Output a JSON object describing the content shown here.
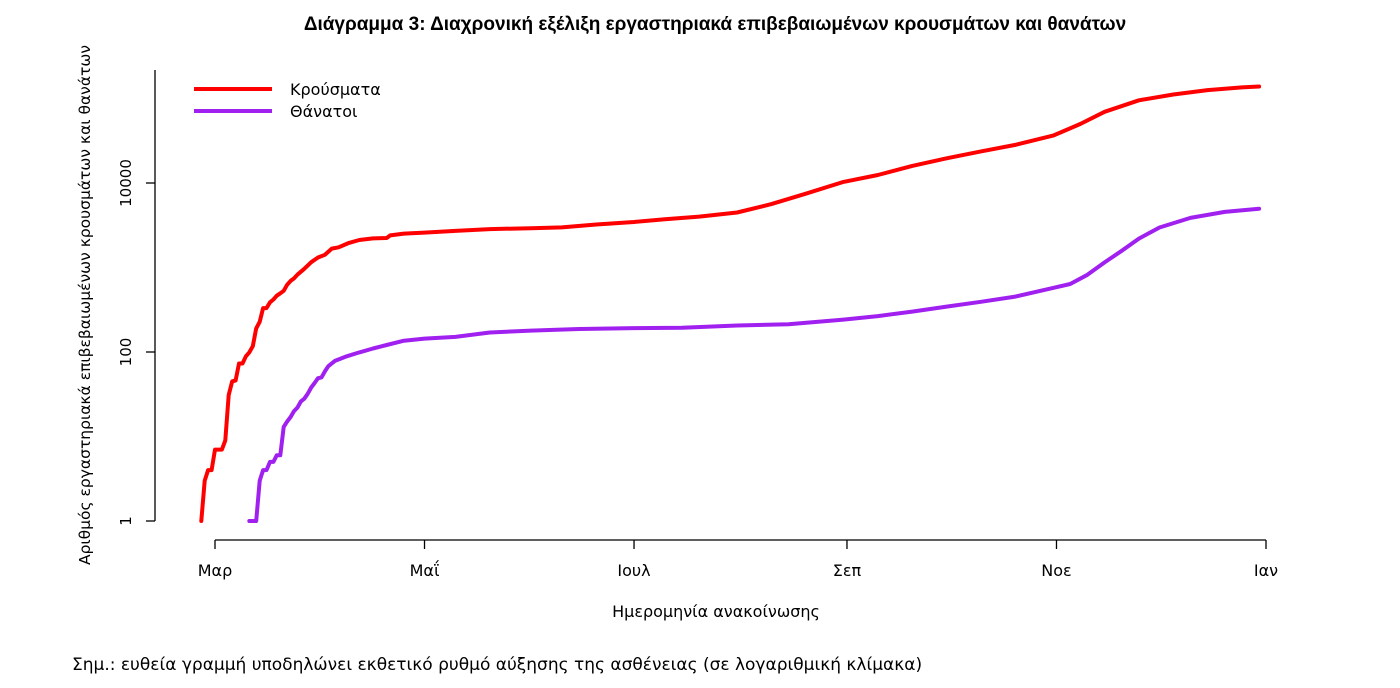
{
  "chart_data": {
    "type": "line",
    "title": "Διάγραμμα 3: Διαχρονική εξέλιξη εργαστηριακά επιβεβαιωμένων κρουσμάτων και θανάτων",
    "xlabel": "Ημερομηνία ανακοίνωσης",
    "ylabel": "Αριθμός εργαστηριακά επιβεβαιωμένων κρουσμάτων και θανάτων",
    "note": "Σημ.: ευθεία γραμμή υποδηλώνει εκθετικό ρυθμό αύξησης της ασθένειας (σε λογαριθμική κλίμακα)",
    "y_scale": "log",
    "ylim": [
      1,
      200000
    ],
    "y_ticks": [
      {
        "value": 1,
        "label": "1"
      },
      {
        "value": 100,
        "label": "100"
      },
      {
        "value": 10000,
        "label": "10000"
      }
    ],
    "xlim": [
      "2020-02-22",
      "2021-01-01"
    ],
    "x_ticks": [
      {
        "value": "2020-03-01",
        "label": "Μαρ"
      },
      {
        "value": "2020-05-01",
        "label": "Μαΐ"
      },
      {
        "value": "2020-07-01",
        "label": "Ιουλ"
      },
      {
        "value": "2020-09-01",
        "label": "Σεπ"
      },
      {
        "value": "2020-11-01",
        "label": "Νοε"
      },
      {
        "value": "2021-01-01",
        "label": "Ιαν"
      }
    ],
    "grid": false,
    "legend_position": "top-left",
    "series": [
      {
        "name": "Κρούσματα",
        "color": "#ff0000",
        "points": [
          [
            "2020-02-26",
            1
          ],
          [
            "2020-02-27",
            3
          ],
          [
            "2020-02-28",
            4
          ],
          [
            "2020-02-29",
            4
          ],
          [
            "2020-03-01",
            7
          ],
          [
            "2020-03-03",
            7
          ],
          [
            "2020-03-04",
            9
          ],
          [
            "2020-03-05",
            31
          ],
          [
            "2020-03-06",
            45
          ],
          [
            "2020-03-07",
            46
          ],
          [
            "2020-03-08",
            73
          ],
          [
            "2020-03-09",
            73
          ],
          [
            "2020-03-10",
            89
          ],
          [
            "2020-03-11",
            99
          ],
          [
            "2020-03-12",
            117
          ],
          [
            "2020-03-13",
            190
          ],
          [
            "2020-03-14",
            228
          ],
          [
            "2020-03-15",
            331
          ],
          [
            "2020-03-16",
            331
          ],
          [
            "2020-03-17",
            387
          ],
          [
            "2020-03-18",
            418
          ],
          [
            "2020-03-19",
            464
          ],
          [
            "2020-03-20",
            495
          ],
          [
            "2020-03-21",
            530
          ],
          [
            "2020-03-22",
            624
          ],
          [
            "2020-03-23",
            695
          ],
          [
            "2020-03-24",
            743
          ],
          [
            "2020-03-25",
            821
          ],
          [
            "2020-03-27",
            966
          ],
          [
            "2020-03-29",
            1156
          ],
          [
            "2020-03-31",
            1314
          ],
          [
            "2020-04-02",
            1415
          ],
          [
            "2020-04-04",
            1673
          ],
          [
            "2020-04-06",
            1735
          ],
          [
            "2020-04-09",
            1955
          ],
          [
            "2020-04-12",
            2114
          ],
          [
            "2020-04-16",
            2207
          ],
          [
            "2020-04-20",
            2235
          ],
          [
            "2020-04-21",
            2401
          ],
          [
            "2020-04-25",
            2517
          ],
          [
            "2020-05-01",
            2591
          ],
          [
            "2020-05-10",
            2710
          ],
          [
            "2020-05-20",
            2850
          ],
          [
            "2020-06-01",
            2918
          ],
          [
            "2020-06-10",
            2980
          ],
          [
            "2020-06-20",
            3230
          ],
          [
            "2020-07-01",
            3458
          ],
          [
            "2020-07-10",
            3732
          ],
          [
            "2020-07-20",
            4007
          ],
          [
            "2020-07-31",
            4477
          ],
          [
            "2020-08-10",
            5623
          ],
          [
            "2020-08-20",
            7472
          ],
          [
            "2020-08-31",
            10317
          ],
          [
            "2020-09-10",
            12452
          ],
          [
            "2020-09-20",
            15928
          ],
          [
            "2020-09-30",
            19613
          ],
          [
            "2020-10-10",
            23651
          ],
          [
            "2020-10-20",
            28216
          ],
          [
            "2020-10-31",
            36376
          ],
          [
            "2020-11-08",
            50000
          ],
          [
            "2020-11-15",
            69675
          ],
          [
            "2020-11-25",
            95137
          ],
          [
            "2020-12-05",
            111662
          ],
          [
            "2020-12-15",
            125583
          ],
          [
            "2020-12-25",
            135456
          ],
          [
            "2020-12-30",
            138850
          ]
        ]
      },
      {
        "name": "Θάνατοι",
        "color": "#a020f0",
        "points": [
          [
            "2020-03-11",
            1
          ],
          [
            "2020-03-13",
            1
          ],
          [
            "2020-03-14",
            3
          ],
          [
            "2020-03-15",
            4
          ],
          [
            "2020-03-16",
            4
          ],
          [
            "2020-03-17",
            5
          ],
          [
            "2020-03-18",
            5
          ],
          [
            "2020-03-19",
            6
          ],
          [
            "2020-03-20",
            6
          ],
          [
            "2020-03-21",
            13
          ],
          [
            "2020-03-22",
            15
          ],
          [
            "2020-03-23",
            17
          ],
          [
            "2020-03-24",
            20
          ],
          [
            "2020-03-25",
            22
          ],
          [
            "2020-03-26",
            26
          ],
          [
            "2020-03-27",
            28
          ],
          [
            "2020-03-28",
            32
          ],
          [
            "2020-03-29",
            38
          ],
          [
            "2020-03-30",
            43
          ],
          [
            "2020-03-31",
            49
          ],
          [
            "2020-04-01",
            50
          ],
          [
            "2020-04-02",
            59
          ],
          [
            "2020-04-03",
            68
          ],
          [
            "2020-04-05",
            79
          ],
          [
            "2020-04-08",
            88
          ],
          [
            "2020-04-12",
            99
          ],
          [
            "2020-04-16",
            110
          ],
          [
            "2020-04-20",
            121
          ],
          [
            "2020-04-25",
            136
          ],
          [
            "2020-05-01",
            144
          ],
          [
            "2020-05-10",
            151
          ],
          [
            "2020-05-20",
            170
          ],
          [
            "2020-06-01",
            179
          ],
          [
            "2020-06-15",
            187
          ],
          [
            "2020-07-01",
            192
          ],
          [
            "2020-07-15",
            194
          ],
          [
            "2020-07-31",
            206
          ],
          [
            "2020-08-15",
            213
          ],
          [
            "2020-08-31",
            242
          ],
          [
            "2020-09-10",
            266
          ],
          [
            "2020-09-20",
            301
          ],
          [
            "2020-09-30",
            345
          ],
          [
            "2020-10-10",
            393
          ],
          [
            "2020-10-20",
            452
          ],
          [
            "2020-10-31",
            573
          ],
          [
            "2020-11-05",
            638
          ],
          [
            "2020-11-10",
            820
          ],
          [
            "2020-11-15",
            1150
          ],
          [
            "2020-11-20",
            1575
          ],
          [
            "2020-11-25",
            2200
          ],
          [
            "2020-12-01",
            2973
          ],
          [
            "2020-12-10",
            3866
          ],
          [
            "2020-12-20",
            4553
          ],
          [
            "2020-12-30",
            4964
          ]
        ]
      }
    ]
  }
}
